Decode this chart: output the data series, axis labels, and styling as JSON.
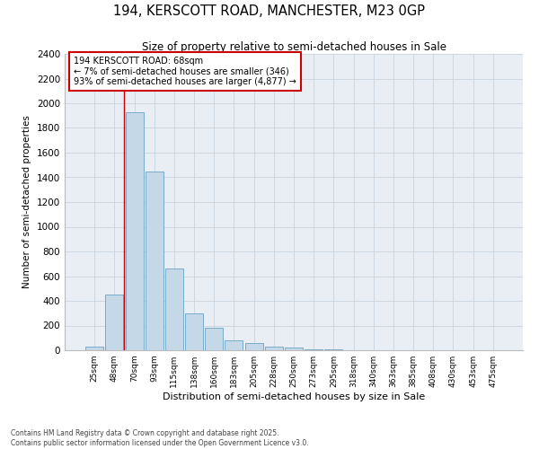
{
  "title": "194, KERSCOTT ROAD, MANCHESTER, M23 0GP",
  "subtitle": "Size of property relative to semi-detached houses in Sale",
  "xlabel": "Distribution of semi-detached houses by size in Sale",
  "ylabel": "Number of semi-detached properties",
  "categories": [
    "25sqm",
    "48sqm",
    "70sqm",
    "93sqm",
    "115sqm",
    "138sqm",
    "160sqm",
    "183sqm",
    "205sqm",
    "228sqm",
    "250sqm",
    "273sqm",
    "295sqm",
    "318sqm",
    "340sqm",
    "363sqm",
    "385sqm",
    "408sqm",
    "430sqm",
    "453sqm",
    "475sqm"
  ],
  "values": [
    30,
    450,
    1930,
    1450,
    660,
    300,
    185,
    80,
    55,
    30,
    20,
    10,
    5,
    3,
    2,
    1,
    1,
    0,
    0,
    0,
    0
  ],
  "bar_color": "#c5d8e8",
  "bar_edge_color": "#7aabca",
  "annotation_text_line1": "194 KERSCOTT ROAD: 68sqm",
  "annotation_text_line2": "← 7% of semi-detached houses are smaller (346)",
  "annotation_text_line3": "93% of semi-detached houses are larger (4,877) →",
  "annotation_box_color": "#ffffff",
  "annotation_box_edge": "#cc0000",
  "vline_color": "#cc0000",
  "grid_color": "#c8d4e0",
  "background_color": "#e8eef4",
  "ylim": [
    0,
    2400
  ],
  "yticks": [
    0,
    200,
    400,
    600,
    800,
    1000,
    1200,
    1400,
    1600,
    1800,
    2000,
    2200,
    2400
  ],
  "footer_line1": "Contains HM Land Registry data © Crown copyright and database right 2025.",
  "footer_line2": "Contains public sector information licensed under the Open Government Licence v3.0."
}
